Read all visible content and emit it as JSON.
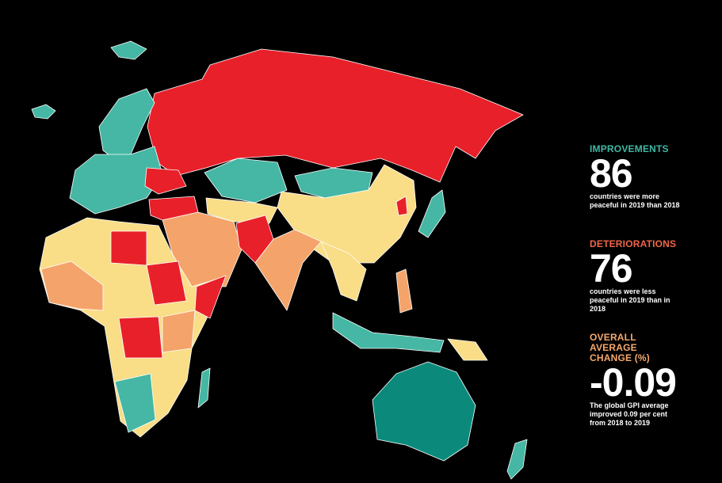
{
  "stats": [
    {
      "label": "IMPROVEMENTS",
      "value": 86,
      "description": "countries were more peaceful in 2019 than 2018"
    },
    {
      "label": "DETERIORATIONS",
      "value": 76,
      "description": "countries were less peaceful in 2019 than in 2018"
    },
    {
      "label": "OVERALL AVERAGE CHANGE (%)",
      "value": -0.09,
      "description": "The global GPI average improved 0.09 per cent from 2018 to 2019"
    }
  ]
}
